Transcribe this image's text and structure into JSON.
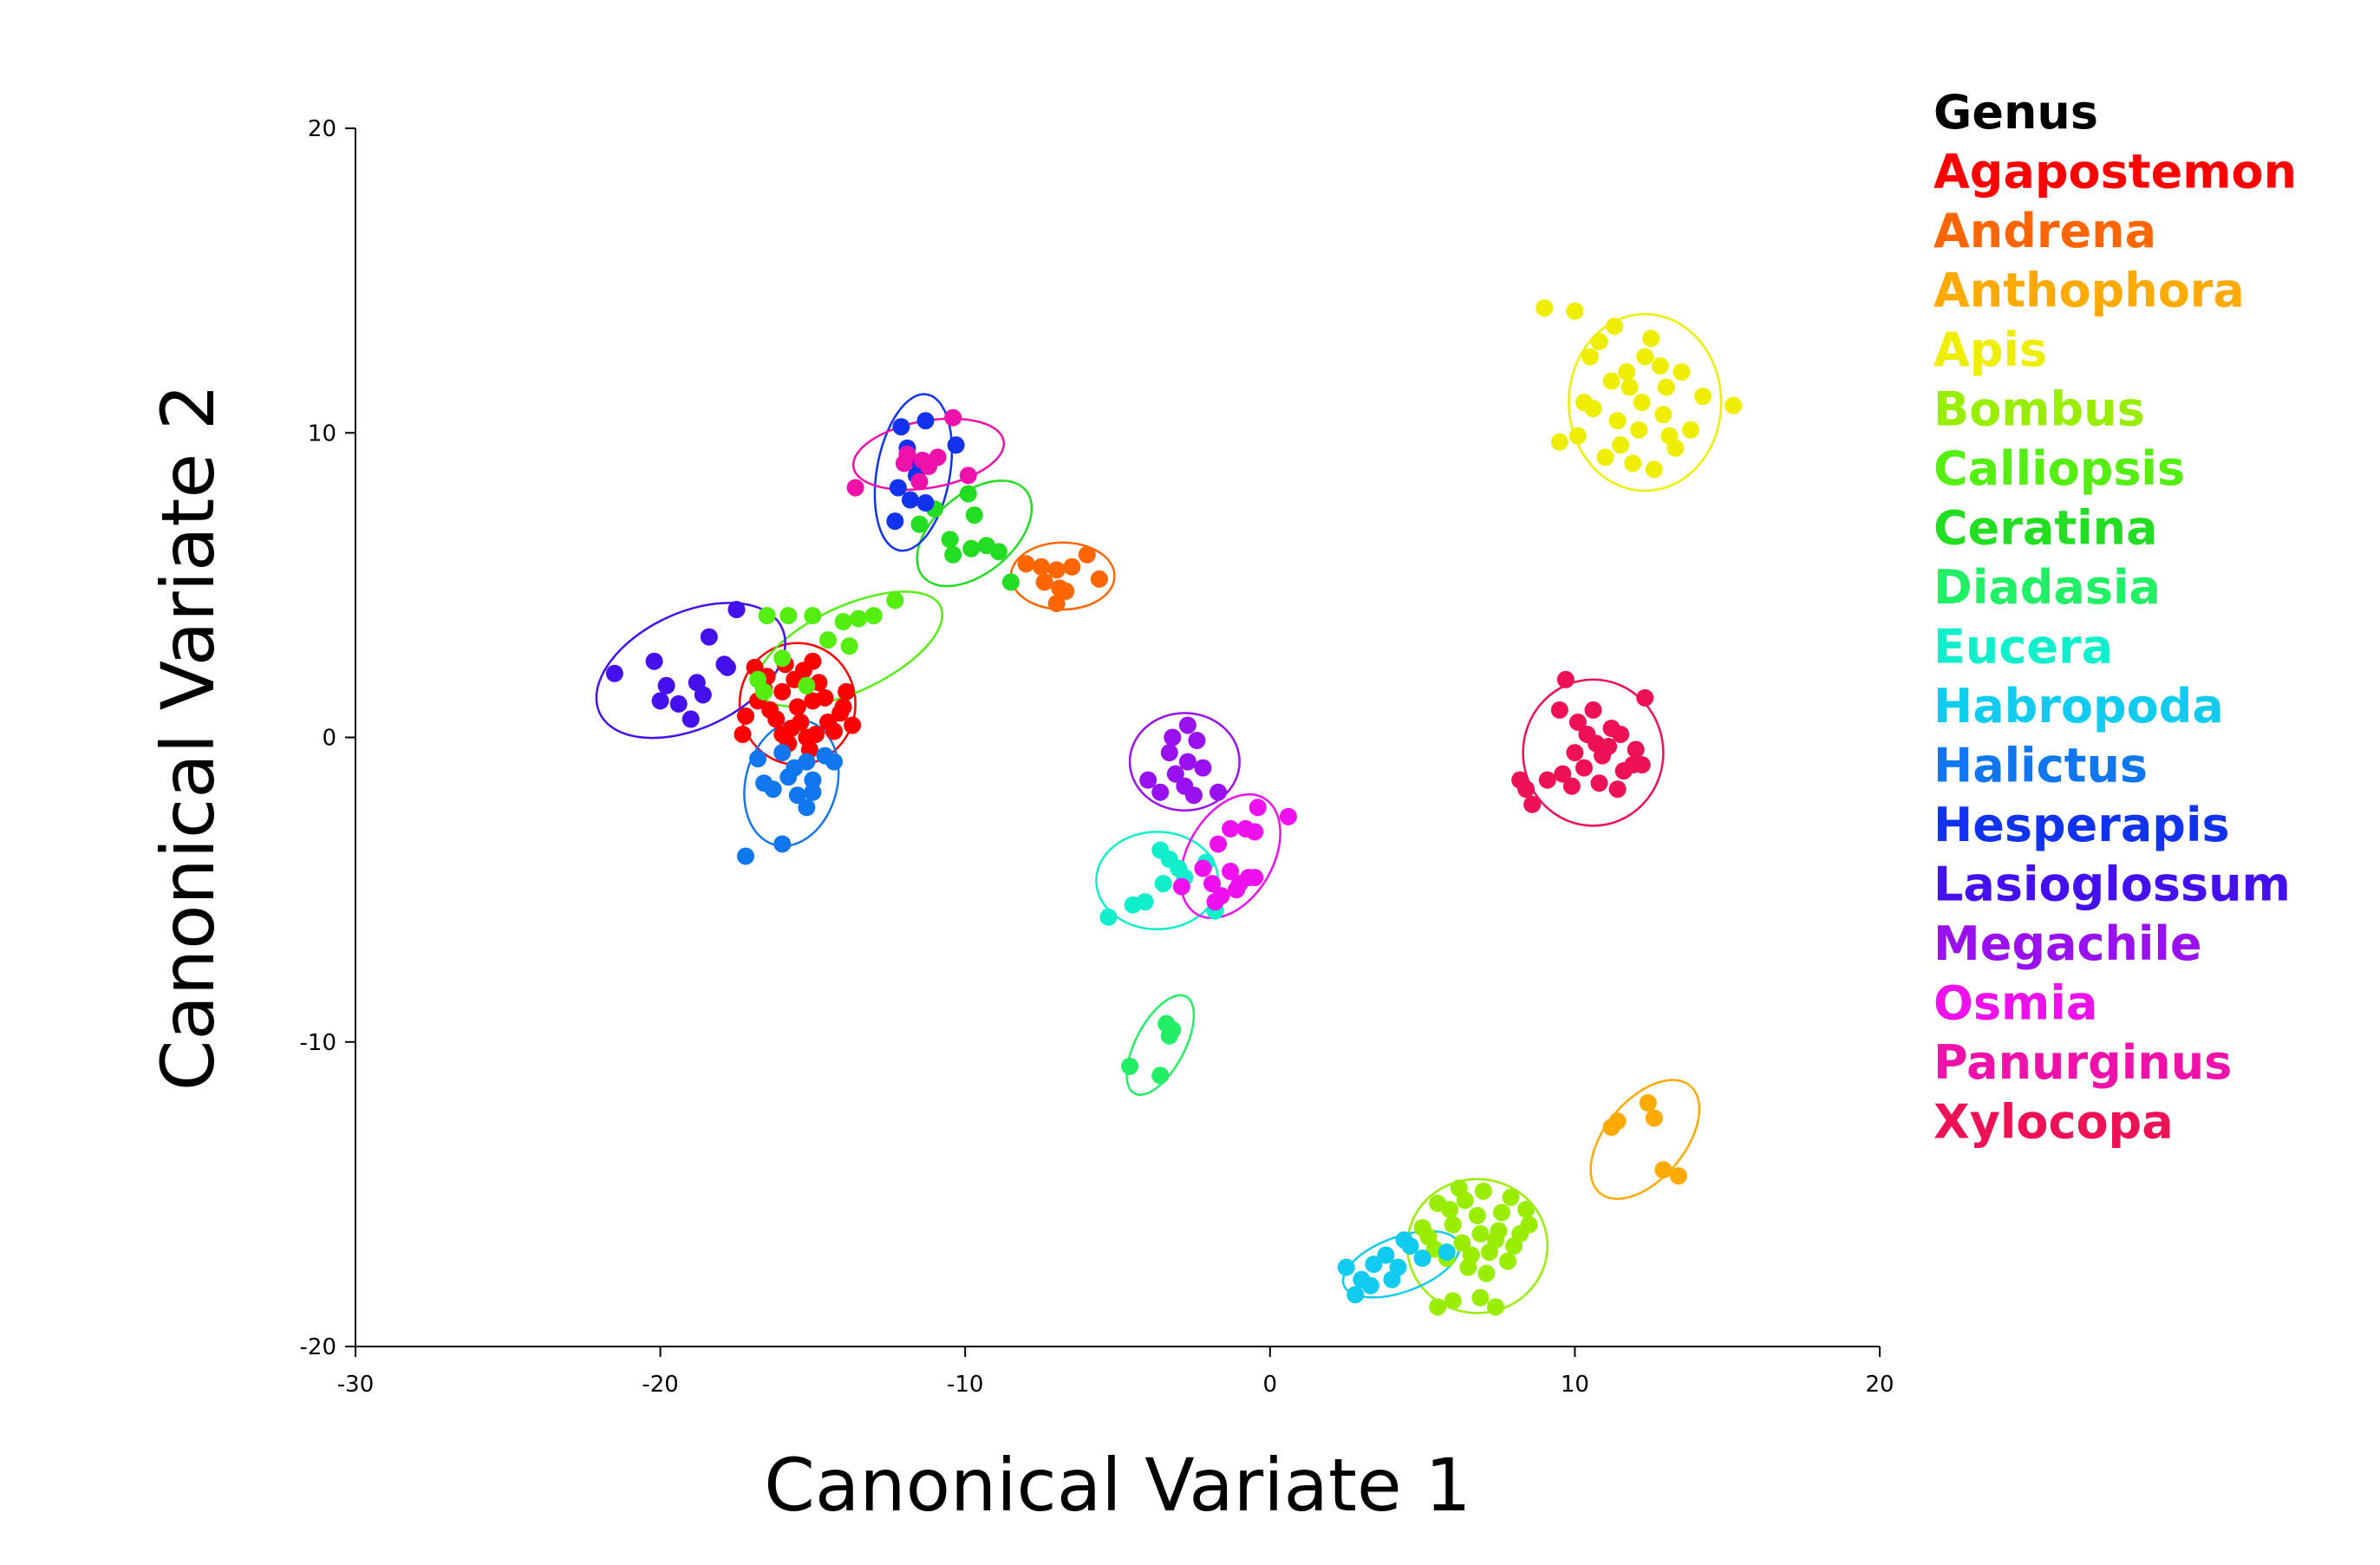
{
  "chart_data": {
    "type": "scatter",
    "xlabel": "Canonical Variate 1",
    "ylabel": "Canonical Variate 2",
    "xlim": [
      -30,
      20
    ],
    "ylim": [
      -20,
      20
    ],
    "xticks": [
      -30,
      -20,
      -10,
      0,
      10,
      20
    ],
    "yticks": [
      -20,
      -10,
      0,
      10,
      20
    ],
    "grid": false,
    "legend": {
      "title": "Genus",
      "title_color": "#000000",
      "position": "right"
    },
    "series": [
      {
        "name": "Agapostemon",
        "color": "#ff0000",
        "ellipse": {
          "cx": -15.5,
          "cy": 1.1,
          "rx": 1.9,
          "ry": 2.0,
          "angle": 0
        },
        "points": [
          [
            -16.5,
            2.0
          ],
          [
            -15.0,
            2.5
          ],
          [
            -16.0,
            1.5
          ],
          [
            -15.5,
            1.0
          ],
          [
            -14.5,
            0.5
          ],
          [
            -15.2,
            0.0
          ],
          [
            -16.2,
            0.6
          ],
          [
            -14.8,
            1.8
          ],
          [
            -15.8,
            -0.2
          ],
          [
            -14.0,
            1.0
          ],
          [
            -16.8,
            1.2
          ],
          [
            -15.3,
            2.2
          ],
          [
            -14.3,
            0.2
          ],
          [
            -17.2,
            0.7
          ],
          [
            -17.3,
            0.1
          ],
          [
            -13.7,
            0.4
          ],
          [
            -15.1,
            -0.4
          ],
          [
            -16.0,
            0.1
          ],
          [
            -15.6,
            1.9
          ],
          [
            -14.6,
            1.3
          ],
          [
            -15.9,
            2.4
          ],
          [
            -16.4,
            0.9
          ],
          [
            -14.1,
            0.8
          ],
          [
            -15.4,
            0.5
          ],
          [
            -14.9,
            0.1
          ],
          [
            -16.6,
            1.6
          ],
          [
            -15.0,
            1.2
          ],
          [
            -13.9,
            1.5
          ],
          [
            -15.7,
            0.3
          ],
          [
            -16.9,
            2.3
          ]
        ]
      },
      {
        "name": "Andrena",
        "color": "#ff6600",
        "ellipse": {
          "cx": -6.8,
          "cy": 5.3,
          "rx": 1.7,
          "ry": 1.1,
          "angle": 0
        },
        "points": [
          [
            -8.0,
            5.7
          ],
          [
            -7.5,
            5.6
          ],
          [
            -7.0,
            5.5
          ],
          [
            -6.5,
            5.6
          ],
          [
            -6.0,
            6.0
          ],
          [
            -6.9,
            4.9
          ],
          [
            -6.7,
            4.8
          ],
          [
            -7.0,
            4.4
          ],
          [
            -5.6,
            5.2
          ],
          [
            -7.4,
            5.1
          ]
        ]
      },
      {
        "name": "Anthophora",
        "color": "#ffaa00",
        "ellipse": {
          "cx": 12.3,
          "cy": -13.2,
          "rx": 2.3,
          "ry": 1.3,
          "angle": -50
        },
        "points": [
          [
            11.2,
            -12.8
          ],
          [
            11.4,
            -12.6
          ],
          [
            12.4,
            -12.0
          ],
          [
            12.6,
            -12.5
          ],
          [
            12.9,
            -14.2
          ],
          [
            13.4,
            -14.4
          ]
        ]
      },
      {
        "name": "Apis",
        "color": "#eeee00",
        "ellipse": {
          "cx": 12.3,
          "cy": 11.0,
          "rx": 2.5,
          "ry": 2.9,
          "angle": 0
        },
        "points": [
          [
            9.0,
            14.1
          ],
          [
            10.0,
            14.0
          ],
          [
            11.3,
            13.5
          ],
          [
            12.5,
            13.1
          ],
          [
            10.5,
            12.5
          ],
          [
            11.7,
            12.0
          ],
          [
            13.0,
            11.5
          ],
          [
            14.2,
            11.2
          ],
          [
            15.2,
            10.9
          ],
          [
            10.3,
            11.0
          ],
          [
            11.4,
            10.4
          ],
          [
            12.1,
            10.1
          ],
          [
            13.1,
            9.9
          ],
          [
            13.8,
            10.1
          ],
          [
            9.5,
            9.7
          ],
          [
            10.1,
            9.9
          ],
          [
            11.0,
            9.2
          ],
          [
            12.6,
            8.8
          ],
          [
            11.9,
            9.0
          ],
          [
            12.8,
            12.2
          ],
          [
            11.2,
            11.7
          ],
          [
            10.6,
            10.8
          ],
          [
            12.9,
            10.6
          ],
          [
            11.8,
            11.5
          ],
          [
            12.3,
            12.5
          ],
          [
            13.5,
            12.0
          ],
          [
            10.8,
            13.0
          ],
          [
            11.5,
            9.6
          ],
          [
            12.2,
            11.0
          ],
          [
            13.3,
            9.5
          ]
        ]
      },
      {
        "name": "Bombus",
        "color": "#99ee00",
        "ellipse": {
          "cx": 6.8,
          "cy": -16.7,
          "rx": 2.3,
          "ry": 2.2,
          "angle": 0
        },
        "points": [
          [
            5.5,
            -15.3
          ],
          [
            6.2,
            -14.8
          ],
          [
            7.0,
            -14.9
          ],
          [
            7.9,
            -15.1
          ],
          [
            8.4,
            -15.5
          ],
          [
            5.0,
            -16.1
          ],
          [
            6.0,
            -16.0
          ],
          [
            6.8,
            -15.7
          ],
          [
            7.5,
            -16.2
          ],
          [
            8.2,
            -16.3
          ],
          [
            8.5,
            -16.0
          ],
          [
            5.4,
            -16.8
          ],
          [
            6.3,
            -16.6
          ],
          [
            7.2,
            -16.9
          ],
          [
            7.8,
            -17.2
          ],
          [
            6.5,
            -17.4
          ],
          [
            5.8,
            -17.1
          ],
          [
            6.9,
            -16.3
          ],
          [
            5.5,
            -18.7
          ],
          [
            6.0,
            -18.5
          ],
          [
            6.9,
            -18.4
          ],
          [
            7.4,
            -18.7
          ],
          [
            6.6,
            -17.0
          ],
          [
            7.6,
            -15.6
          ],
          [
            5.9,
            -15.5
          ],
          [
            7.1,
            -17.6
          ],
          [
            6.4,
            -15.2
          ],
          [
            8.0,
            -16.7
          ],
          [
            5.2,
            -16.4
          ],
          [
            7.4,
            -16.5
          ]
        ]
      },
      {
        "name": "Calliopsis",
        "color": "#55ee11",
        "ellipse": {
          "cx": -13.8,
          "cy": 2.9,
          "rx": 3.3,
          "ry": 1.4,
          "angle": -25
        },
        "points": [
          [
            -16.5,
            4.0
          ],
          [
            -15.8,
            4.0
          ],
          [
            -15.0,
            4.0
          ],
          [
            -14.5,
            3.2
          ],
          [
            -14.0,
            3.8
          ],
          [
            -13.5,
            3.9
          ],
          [
            -13.0,
            4.0
          ],
          [
            -12.3,
            4.5
          ],
          [
            -13.8,
            3.0
          ],
          [
            -16.0,
            2.6
          ],
          [
            -16.8,
            1.9
          ],
          [
            -16.6,
            1.5
          ],
          [
            -15.2,
            1.7
          ]
        ]
      },
      {
        "name": "Ceratina",
        "color": "#22dd22",
        "ellipse": {
          "cx": -9.7,
          "cy": 6.7,
          "rx": 2.2,
          "ry": 1.3,
          "angle": -40
        },
        "points": [
          [
            -11.5,
            7.0
          ],
          [
            -10.5,
            6.5
          ],
          [
            -9.8,
            6.2
          ],
          [
            -9.3,
            6.3
          ],
          [
            -8.9,
            6.1
          ],
          [
            -10.4,
            6.0
          ],
          [
            -9.7,
            7.3
          ],
          [
            -11.0,
            7.5
          ],
          [
            -9.9,
            8.0
          ],
          [
            -8.5,
            5.1
          ]
        ]
      },
      {
        "name": "Diadasia",
        "color": "#22ee66",
        "ellipse": {
          "cx": -3.6,
          "cy": -10.1,
          "rx": 1.8,
          "ry": 0.8,
          "angle": -62
        },
        "points": [
          [
            -3.4,
            -9.4
          ],
          [
            -3.2,
            -9.6
          ],
          [
            -3.3,
            -9.8
          ],
          [
            -4.6,
            -10.8
          ],
          [
            -3.6,
            -11.1
          ]
        ]
      },
      {
        "name": "Eucera",
        "color": "#11eecc",
        "ellipse": {
          "cx": -3.7,
          "cy": -4.7,
          "rx": 2.0,
          "ry": 1.6,
          "angle": 0
        },
        "points": [
          [
            -5.3,
            -5.9
          ],
          [
            -4.5,
            -5.5
          ],
          [
            -4.1,
            -5.4
          ],
          [
            -3.6,
            -3.7
          ],
          [
            -3.3,
            -4.0
          ],
          [
            -3.0,
            -4.3
          ],
          [
            -2.8,
            -4.6
          ],
          [
            -3.5,
            -4.8
          ],
          [
            -1.8,
            -5.7
          ],
          [
            -2.1,
            -4.1
          ]
        ]
      },
      {
        "name": "Habropoda",
        "color": "#11ccee",
        "ellipse": {
          "cx": 4.3,
          "cy": -17.3,
          "rx": 2.0,
          "ry": 0.9,
          "angle": -20
        },
        "points": [
          [
            2.5,
            -17.4
          ],
          [
            3.0,
            -17.8
          ],
          [
            3.4,
            -17.3
          ],
          [
            3.8,
            -17.0
          ],
          [
            4.2,
            -17.4
          ],
          [
            4.6,
            -16.7
          ],
          [
            5.0,
            -17.1
          ],
          [
            5.8,
            -16.9
          ],
          [
            2.8,
            -18.3
          ],
          [
            3.3,
            -18.0
          ],
          [
            4.0,
            -17.8
          ],
          [
            4.4,
            -16.5
          ]
        ]
      },
      {
        "name": "Halictus",
        "color": "#1177ee",
        "ellipse": {
          "cx": -15.7,
          "cy": -1.5,
          "rx": 1.5,
          "ry": 2.1,
          "angle": 15
        },
        "points": [
          [
            -16.0,
            -0.5
          ],
          [
            -15.2,
            -0.8
          ],
          [
            -14.6,
            -0.6
          ],
          [
            -16.8,
            -0.7
          ],
          [
            -15.8,
            -1.3
          ],
          [
            -15.0,
            -1.4
          ],
          [
            -16.3,
            -1.7
          ],
          [
            -15.5,
            -1.9
          ],
          [
            -15.2,
            -2.3
          ],
          [
            -14.3,
            -0.8
          ],
          [
            -16.0,
            -3.5
          ],
          [
            -17.2,
            -3.9
          ],
          [
            -15.6,
            -1.0
          ],
          [
            -16.6,
            -1.5
          ],
          [
            -15.0,
            -1.8
          ]
        ]
      },
      {
        "name": "Hesperapis",
        "color": "#1133ee",
        "ellipse": {
          "cx": -11.7,
          "cy": 8.7,
          "rx": 1.2,
          "ry": 2.6,
          "angle": 10
        },
        "points": [
          [
            -12.1,
            10.2
          ],
          [
            -11.3,
            10.4
          ],
          [
            -11.9,
            9.5
          ],
          [
            -11.5,
            9.0
          ],
          [
            -10.3,
            9.6
          ],
          [
            -12.2,
            8.2
          ],
          [
            -11.8,
            7.8
          ],
          [
            -11.3,
            7.7
          ],
          [
            -12.3,
            7.1
          ],
          [
            -11.6,
            8.6
          ]
        ]
      },
      {
        "name": "Lasioglossum",
        "color": "#4411ee",
        "ellipse": {
          "cx": -19.0,
          "cy": 2.2,
          "rx": 3.3,
          "ry": 1.9,
          "angle": -25
        },
        "points": [
          [
            -21.5,
            2.1
          ],
          [
            -20.2,
            2.5
          ],
          [
            -19.8,
            1.7
          ],
          [
            -19.4,
            1.1
          ],
          [
            -18.8,
            1.8
          ],
          [
            -18.6,
            1.4
          ],
          [
            -18.4,
            3.3
          ],
          [
            -17.9,
            2.4
          ],
          [
            -17.5,
            4.2
          ],
          [
            -17.8,
            2.3
          ],
          [
            -19.0,
            0.6
          ],
          [
            -20.0,
            1.2
          ]
        ]
      },
      {
        "name": "Megachile",
        "color": "#9911ee",
        "ellipse": {
          "cx": -2.8,
          "cy": -0.8,
          "rx": 1.8,
          "ry": 1.6,
          "angle": 0
        },
        "points": [
          [
            -2.7,
            0.4
          ],
          [
            -3.2,
            0.0
          ],
          [
            -2.4,
            -0.1
          ],
          [
            -3.3,
            -0.5
          ],
          [
            -2.7,
            -0.8
          ],
          [
            -2.2,
            -1.0
          ],
          [
            -4.0,
            -1.4
          ],
          [
            -3.6,
            -1.8
          ],
          [
            -2.8,
            -1.6
          ],
          [
            -1.7,
            -1.8
          ],
          [
            -2.5,
            -1.9
          ],
          [
            -3.1,
            -1.2
          ]
        ]
      },
      {
        "name": "Osmia",
        "color": "#ee11ee",
        "ellipse": {
          "cx": -1.3,
          "cy": -3.9,
          "rx": 1.4,
          "ry": 2.2,
          "angle": 30
        },
        "points": [
          [
            -0.4,
            -2.3
          ],
          [
            0.6,
            -2.6
          ],
          [
            -0.8,
            -3.0
          ],
          [
            -1.3,
            -3.0
          ],
          [
            -0.5,
            -3.1
          ],
          [
            -1.7,
            -3.5
          ],
          [
            -2.2,
            -4.3
          ],
          [
            -1.3,
            -4.4
          ],
          [
            -0.7,
            -4.6
          ],
          [
            -0.5,
            -4.6
          ],
          [
            -1.9,
            -4.8
          ],
          [
            -1.1,
            -5.0
          ],
          [
            -1.6,
            -5.2
          ],
          [
            -2.9,
            -4.9
          ],
          [
            -1.8,
            -5.4
          ],
          [
            -1.0,
            -4.8
          ]
        ]
      },
      {
        "name": "Panurginus",
        "color": "#ee11aa",
        "ellipse": {
          "cx": -11.2,
          "cy": 9.3,
          "rx": 2.5,
          "ry": 1.1,
          "angle": -10
        },
        "points": [
          [
            -10.4,
            10.5
          ],
          [
            -11.9,
            9.3
          ],
          [
            -11.4,
            9.1
          ],
          [
            -10.9,
            9.2
          ],
          [
            -11.2,
            8.9
          ],
          [
            -13.6,
            8.2
          ],
          [
            -12.0,
            9.0
          ],
          [
            -11.5,
            8.4
          ],
          [
            -9.9,
            8.6
          ]
        ]
      },
      {
        "name": "Xylocopa",
        "color": "#ee1155",
        "ellipse": {
          "cx": 10.6,
          "cy": -0.5,
          "rx": 2.3,
          "ry": 2.4,
          "angle": 0
        },
        "points": [
          [
            9.7,
            1.9
          ],
          [
            10.6,
            0.9
          ],
          [
            12.3,
            1.3
          ],
          [
            9.5,
            0.9
          ],
          [
            10.1,
            0.5
          ],
          [
            11.2,
            0.3
          ],
          [
            11.5,
            0.1
          ],
          [
            10.7,
            -0.2
          ],
          [
            10.0,
            -0.5
          ],
          [
            12.0,
            -0.4
          ],
          [
            11.9,
            -0.9
          ],
          [
            9.6,
            -1.2
          ],
          [
            10.3,
            -1.0
          ],
          [
            10.8,
            -1.5
          ],
          [
            11.4,
            -1.7
          ],
          [
            8.4,
            -1.7
          ],
          [
            8.6,
            -2.2
          ],
          [
            9.1,
            -1.4
          ],
          [
            11.6,
            -1.1
          ],
          [
            10.9,
            -0.6
          ],
          [
            12.2,
            -0.9
          ],
          [
            8.2,
            -1.4
          ],
          [
            9.9,
            -1.6
          ],
          [
            11.1,
            -0.3
          ],
          [
            10.4,
            0.1
          ]
        ]
      }
    ]
  }
}
